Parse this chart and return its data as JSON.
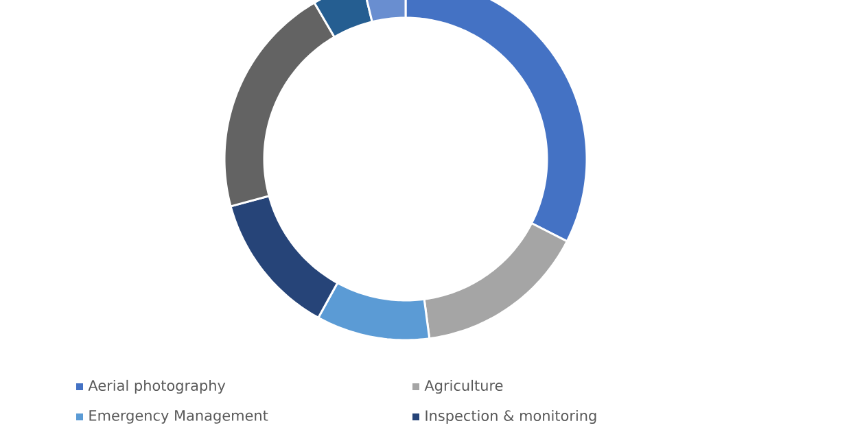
{
  "chart_data": {
    "type": "donut",
    "categories": [
      "Aerial photography",
      "Agriculture",
      "Emergency Management",
      "Inspection & monitoring",
      null,
      null,
      null
    ],
    "values": [
      32.5,
      15.4,
      10.1,
      12.8,
      20.8,
      4.6,
      3.8
    ],
    "colors": [
      "#4472c4",
      "#a5a5a5",
      "#5b9bd5",
      "#264478",
      "#636363",
      "#255e91",
      "#698ed0"
    ],
    "legend": "bottom"
  }
}
